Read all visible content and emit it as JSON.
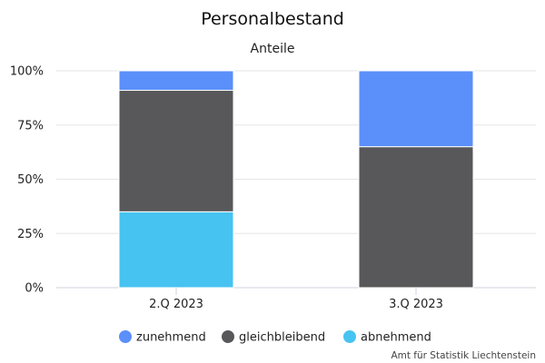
{
  "chart_data": {
    "type": "bar",
    "stacked": true,
    "title": "Personalbestand",
    "subtitle": "Anteile",
    "categories": [
      "2.Q 2023",
      "3.Q 2023"
    ],
    "series": [
      {
        "name": "abnehmend",
        "values": [
          35,
          0
        ],
        "color": "#47c3f1"
      },
      {
        "name": "gleichbleibend",
        "values": [
          56,
          65
        ],
        "color": "#58585a"
      },
      {
        "name": "zunehmend",
        "values": [
          9,
          35
        ],
        "color": "#5b8ff9"
      }
    ],
    "y_ticks": [
      "0%",
      "25%",
      "50%",
      "75%",
      "100%"
    ],
    "ylim": [
      0,
      100
    ],
    "grid": true,
    "legend_position": "bottom",
    "legend_order": [
      "zunehmend",
      "gleichbleibend",
      "abnehmend"
    ],
    "credit": "Amt für Statistik Liechtenstein"
  }
}
